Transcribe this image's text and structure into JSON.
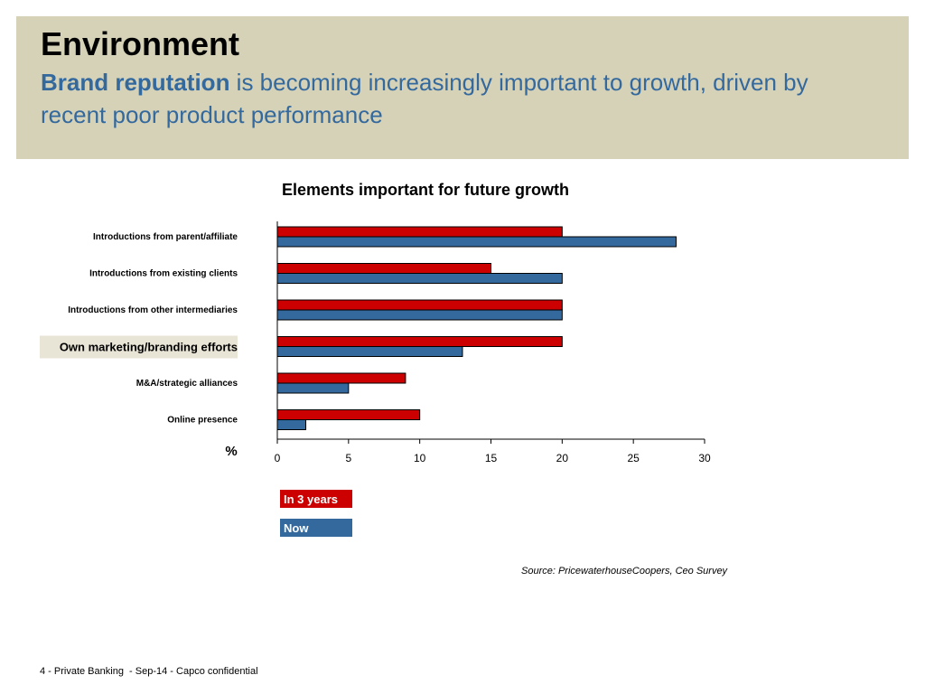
{
  "header": {
    "title": "Environment",
    "subtitle_bold": "Brand reputation",
    "subtitle_rest": " is becoming increasingly important to growth, driven by recent poor product performance"
  },
  "chart_data": {
    "type": "bar",
    "orientation": "horizontal",
    "title": "Elements important for future growth",
    "xlabel": "%",
    "ylabel": "",
    "categories": [
      "Introductions from parent/affiliate",
      "Introductions from existing clients",
      "Introductions from other intermediaries",
      "Own marketing/branding efforts",
      "M&A/strategic alliances",
      "Online presence"
    ],
    "highlighted_category": "Own marketing/branding efforts",
    "series": [
      {
        "name": "In 3 years",
        "color": "#cc0000",
        "values": [
          20,
          15,
          20,
          20,
          9,
          10
        ]
      },
      {
        "name": "Now",
        "color": "#34699e",
        "values": [
          28,
          20,
          20,
          13,
          5,
          2
        ]
      }
    ],
    "xlim": [
      0,
      30
    ],
    "xticks": [
      0,
      5,
      10,
      15,
      20,
      25,
      30
    ],
    "grid": false,
    "legend_position": "bottom-left"
  },
  "source": "Source: PricewaterhouseCoopers, Ceo Survey",
  "footer": "4 - Private Banking  - Sep-14 - Capco confidential"
}
